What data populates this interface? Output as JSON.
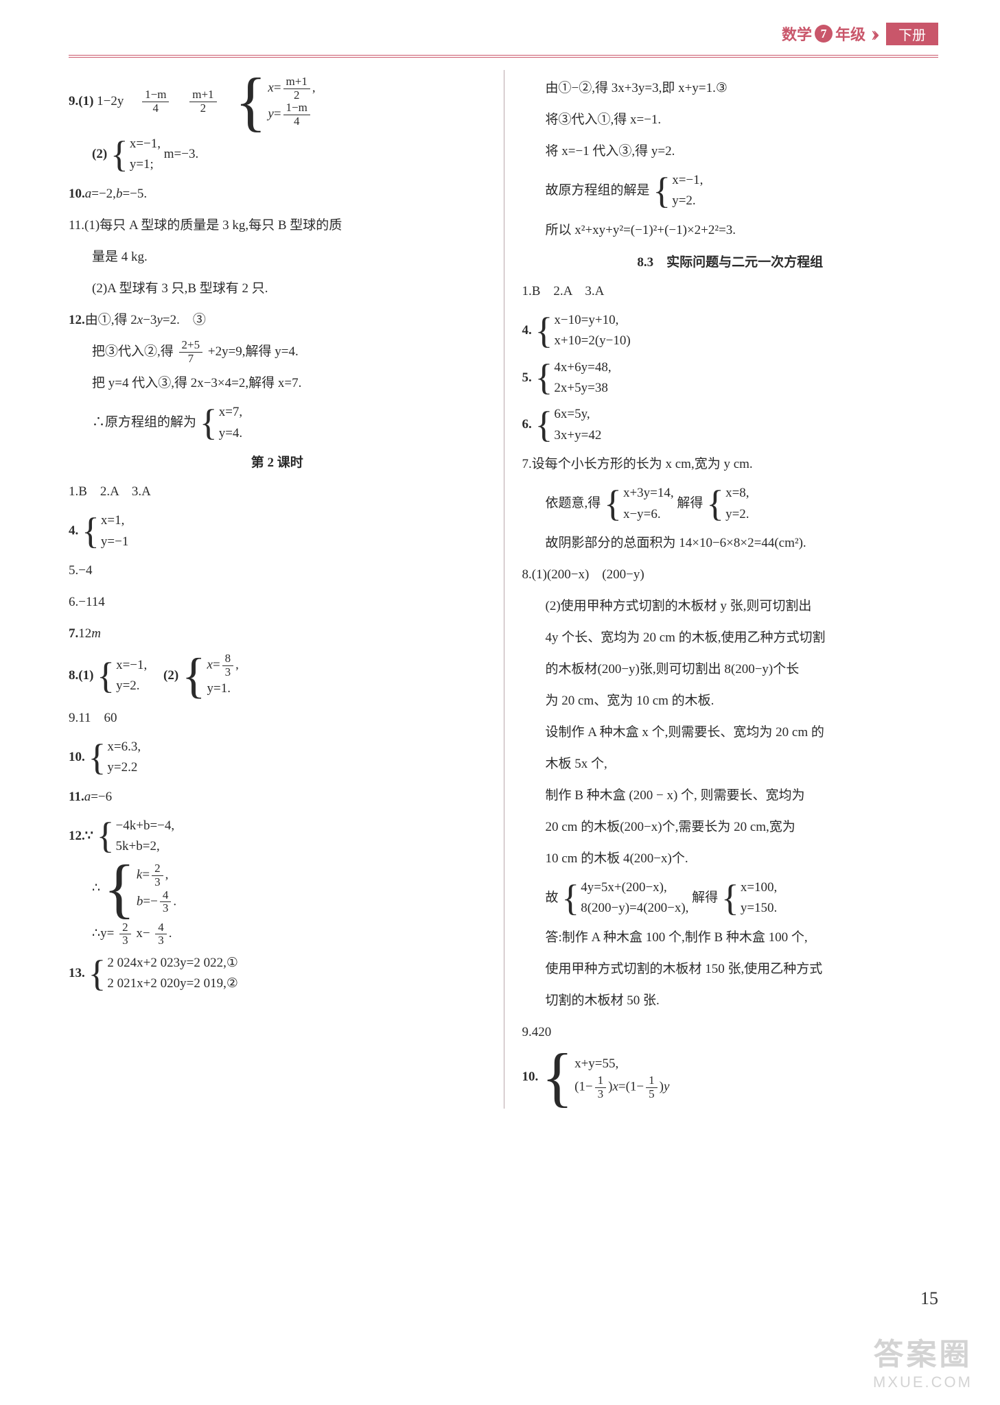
{
  "header": {
    "subject": "数学",
    "grade_num": "7",
    "grade_suffix": "年级",
    "volume": "下册"
  },
  "left": {
    "q9_label": "9.(1)",
    "q9_expr1": "1−2y",
    "q9_frac1_num": "1−m",
    "q9_frac1_den": "4",
    "q9_frac2_num": "m+1",
    "q9_frac2_den": "2",
    "q9_sys_a_num": "m+1",
    "q9_sys_a_den": "2",
    "q9_sys_b_num": "1−m",
    "q9_sys_b_den": "4",
    "q9_2_label": "(2)",
    "q9_2_a": "x=−1,",
    "q9_2_b": "y=1;",
    "q9_2_m": "m=−3.",
    "q10": "10.a=−2,b=−5.",
    "q11_1": "11.(1)每只 A 型球的质量是 3 kg,每只 B 型球的质",
    "q11_1b": "量是 4 kg.",
    "q11_2": "(2)A 型球有 3 只,B 型球有 2 只.",
    "q12_a": "12.由①,得 2x−3y=2.　③",
    "q12_b_pre": "把③代入②,得",
    "q12_b_num": "2+5",
    "q12_b_den": "7",
    "q12_b_post": "+2y=9,解得 y=4.",
    "q12_c": "把 y=4 代入③,得 2x−3×4=2,解得 x=7.",
    "q12_d_pre": "∴原方程组的解为",
    "q12_d_a": "x=7,",
    "q12_d_b": "y=4.",
    "lesson2": "第 2 课时",
    "l2_q1": "1.B　2.A　3.A",
    "l2_q4_label": "4.",
    "l2_q4_a": "x=1,",
    "l2_q4_b": "y=−1",
    "l2_q5": "5.−4",
    "l2_q6": "6.−114",
    "l2_q7": "7.12m",
    "l2_q8_label": "8.(1)",
    "l2_q8_1a": "x=−1,",
    "l2_q8_1b": "y=2.",
    "l2_q8_2_label": "(2)",
    "l2_q8_2a_num": "8",
    "l2_q8_2a_den": "3",
    "l2_q8_2b": "y=1.",
    "l2_q9": "9.11　60",
    "l2_q10_label": "10.",
    "l2_q10_a": "x=6.3,",
    "l2_q10_b": "y=2.2",
    "l2_q11": "11.a=−6",
    "l2_q12_label": "12.∵",
    "l2_q12_a": "−4k+b=−4,",
    "l2_q12_b": "5k+b=2,",
    "l2_q12_sol_pre": "∴",
    "l2_q12_k_num": "2",
    "l2_q12_k_den": "3",
    "l2_q12_b_num": "4",
    "l2_q12_b_den": "3",
    "l2_q12_y_pre": "∴y=",
    "l2_q12_y1_num": "2",
    "l2_q12_y1_den": "3",
    "l2_q12_y_mid": "x−",
    "l2_q12_y2_num": "4",
    "l2_q12_y2_den": "3",
    "l2_q13_label": "13.",
    "l2_q13_a": "2 024x+2 023y=2 022,①",
    "l2_q13_b": "2 021x+2 020y=2 019,②"
  },
  "right": {
    "r1": "由①−②,得 3x+3y=3,即 x+y=1.③",
    "r2": "将③代入①,得 x=−1.",
    "r3": "将 x=−1 代入③,得 y=2.",
    "r4_pre": "故原方程组的解是",
    "r4_a": "x=−1,",
    "r4_b": "y=2.",
    "r5": "所以 x²+xy+y²=(−1)²+(−1)×2+2²=3.",
    "section83": "8.3　实际问题与二元一次方程组",
    "s83_q1": "1.B　2.A　3.A",
    "s83_q4_label": "4.",
    "s83_q4_a": "x−10=y+10,",
    "s83_q4_b": "x+10=2(y−10)",
    "s83_q5_label": "5.",
    "s83_q5_a": "4x+6y=48,",
    "s83_q5_b": "2x+5y=38",
    "s83_q6_label": "6.",
    "s83_q6_a": "6x=5y,",
    "s83_q6_b": "3x+y=42",
    "s83_q7": "7.设每个小长方形的长为 x cm,宽为 y cm.",
    "s83_q7_sys_pre": "依题意,得",
    "s83_q7_sys_a": "x+3y=14,",
    "s83_q7_sys_b": "x−y=6.",
    "s83_q7_sol_pre": "解得",
    "s83_q7_sol_a": "x=8,",
    "s83_q7_sol_b": "y=2.",
    "s83_q7_ans": "故阴影部分的总面积为 14×10−6×8×2=44(cm²).",
    "s83_q8_1": "8.(1)(200−x)　(200−y)",
    "s83_q8_2a": "(2)使用甲种方式切割的木板材 y 张,则可切割出",
    "s83_q8_2b": "4y 个长、宽均为 20 cm 的木板,使用乙种方式切割",
    "s83_q8_2c": "的木板材(200−y)张,则可切割出 8(200−y)个长",
    "s83_q8_2d": "为 20 cm、宽为 10 cm 的木板.",
    "s83_q8_2e": "设制作 A 种木盒 x 个,则需要长、宽均为 20 cm 的",
    "s83_q8_2f": "木板 5x 个,",
    "s83_q8_2g": "制作 B 种木盒 (200 − x) 个, 则需要长、宽均为",
    "s83_q8_2h": "20 cm 的木板(200−x)个,需要长为 20 cm,宽为",
    "s83_q8_2i": "10 cm 的木板 4(200−x)个.",
    "s83_q8_sys_pre": "故",
    "s83_q8_sys_a": "4y=5x+(200−x),",
    "s83_q8_sys_b": "8(200−y)=4(200−x),",
    "s83_q8_sol_pre": "解得",
    "s83_q8_sol_a": "x=100,",
    "s83_q8_sol_b": "y=150.",
    "s83_q8_ans1": "答:制作 A 种木盒 100 个,制作 B 种木盒 100 个,",
    "s83_q8_ans2": "使用甲种方式切割的木板材 150 张,使用乙种方式",
    "s83_q8_ans3": "切割的木板材 50 张.",
    "s83_q9": "9.420",
    "s83_q10_label": "10.",
    "s83_q10_a": "x+y=55,",
    "s83_q10_b_p1_num": "1",
    "s83_q10_b_p1_den": "3",
    "s83_q10_b_p2_num": "1",
    "s83_q10_b_p2_den": "5"
  },
  "page_num": "15",
  "watermark": {
    "line1": "答案圈",
    "line2": "MXUE.COM"
  }
}
